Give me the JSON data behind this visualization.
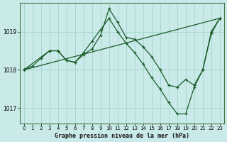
{
  "title": "Graphe pression niveau de la mer (hPa)",
  "background_color": "#caeaea",
  "grid_color": "#a8d8d0",
  "line_color": "#1a5c28",
  "xlim": [
    -0.5,
    23.5
  ],
  "ylim": [
    1016.6,
    1019.75
  ],
  "yticks": [
    1017,
    1018,
    1019
  ],
  "xticks": [
    0,
    1,
    2,
    3,
    4,
    5,
    6,
    7,
    8,
    9,
    10,
    11,
    12,
    13,
    14,
    15,
    16,
    17,
    18,
    19,
    20,
    21,
    22,
    23
  ],
  "series": [
    {
      "x": [
        0,
        1,
        2,
        3,
        4,
        5,
        6,
        7,
        8,
        9,
        10,
        11,
        12,
        13,
        14,
        15,
        16,
        17,
        18,
        19,
        20,
        21,
        22,
        23
      ],
      "y": [
        1018.0,
        1018.1,
        1018.3,
        1018.5,
        1018.5,
        1018.25,
        1018.2,
        1018.4,
        1018.55,
        1018.9,
        1019.6,
        1019.25,
        1018.85,
        1018.8,
        1018.6,
        1018.35,
        1018.0,
        1017.6,
        1017.55,
        1017.75,
        1017.6,
        1018.0,
        1019.0,
        1019.35
      ]
    },
    {
      "x": [
        0,
        3,
        4,
        5,
        6,
        7,
        8,
        9,
        10,
        11,
        12,
        13,
        14,
        15,
        16,
        17,
        18,
        19,
        20,
        21,
        22,
        23
      ],
      "y": [
        1018.0,
        1018.5,
        1018.5,
        1018.25,
        1018.2,
        1018.45,
        1018.75,
        1019.05,
        1019.35,
        1019.0,
        1018.7,
        1018.45,
        1018.15,
        1017.8,
        1017.5,
        1017.15,
        1016.85,
        1016.85,
        1017.55,
        1018.0,
        1018.95,
        1019.35
      ]
    },
    {
      "x": [
        0,
        23
      ],
      "y": [
        1018.0,
        1019.35
      ]
    }
  ]
}
